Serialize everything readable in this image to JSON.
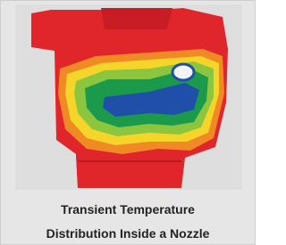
{
  "figure": {
    "caption_lines": [
      "Transient Temperature",
      "Distribution Inside a Nozzle"
    ]
  }
}
